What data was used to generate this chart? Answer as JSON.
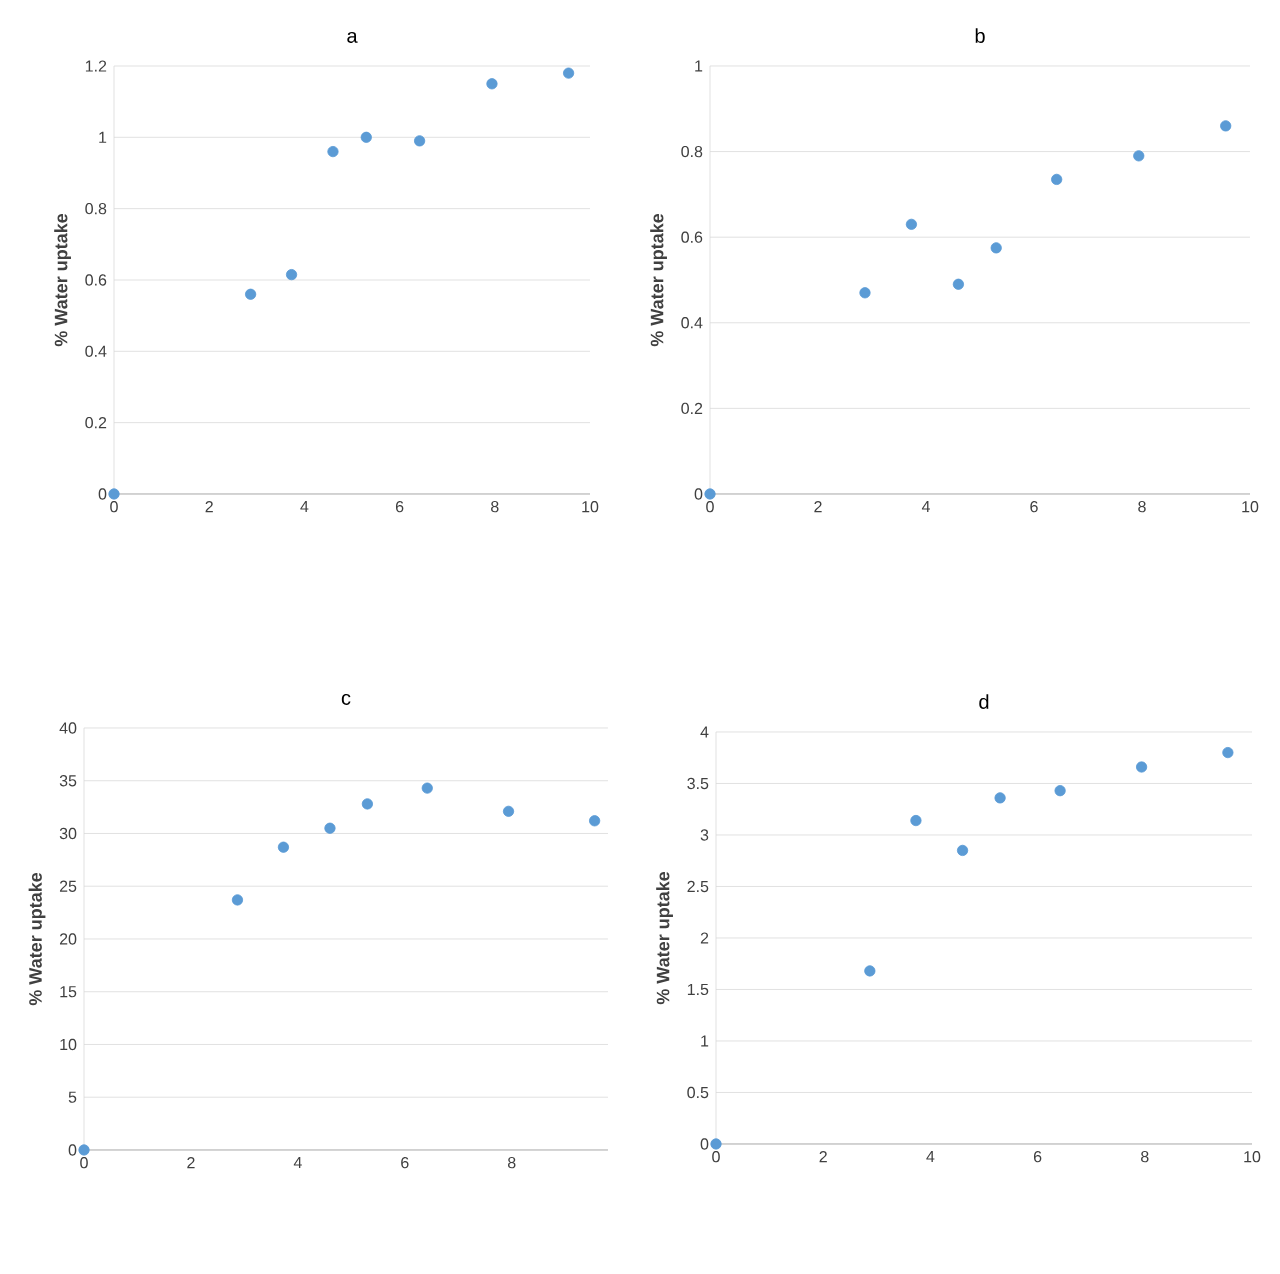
{
  "chart_data": [
    {
      "type": "scatter",
      "title": "a",
      "ylabel": "% Water uptake",
      "x": [
        0,
        2.87,
        3.73,
        4.6,
        5.3,
        6.42,
        7.94,
        9.55
      ],
      "values": [
        0,
        0.56,
        0.615,
        0.96,
        1.0,
        0.99,
        1.15,
        1.18
      ],
      "color": "#5b9bd5",
      "marker": "circle",
      "xlim": [
        0,
        10
      ],
      "ylim": [
        0,
        1.2
      ],
      "xticks": [
        0,
        2,
        4,
        6,
        8,
        10
      ],
      "yticks": [
        0,
        0.2,
        0.4,
        0.6,
        0.8,
        1,
        1.2
      ],
      "grid": "y"
    },
    {
      "type": "scatter",
      "title": "b",
      "ylabel": "% Water uptake",
      "x": [
        0,
        2.87,
        3.73,
        4.6,
        5.3,
        6.42,
        7.94,
        9.55
      ],
      "values": [
        0,
        0.47,
        0.63,
        0.49,
        0.575,
        0.735,
        0.79,
        0.86
      ],
      "color": "#5b9bd5",
      "marker": "circle",
      "xlim": [
        0,
        10
      ],
      "ylim": [
        0,
        1
      ],
      "xticks": [
        0,
        2,
        4,
        6,
        8,
        10
      ],
      "yticks": [
        0,
        0.2,
        0.4,
        0.6,
        0.8,
        1
      ],
      "grid": "y"
    },
    {
      "type": "scatter",
      "title": "c",
      "ylabel": "% Water uptake",
      "x": [
        0,
        2.87,
        3.73,
        4.6,
        5.3,
        6.42,
        7.94,
        9.55
      ],
      "values": [
        0,
        23.7,
        28.7,
        30.5,
        32.8,
        34.3,
        32.1,
        31.2
      ],
      "color": "#5b9bd5",
      "marker": "circle",
      "xlim": [
        0,
        9.8
      ],
      "ylim": [
        0,
        40
      ],
      "xticks": [
        0,
        2,
        4,
        6,
        8
      ],
      "yticks": [
        0,
        5,
        10,
        15,
        20,
        25,
        30,
        35,
        40
      ],
      "grid": "y"
    },
    {
      "type": "scatter",
      "title": "d",
      "ylabel": "% Water uptake",
      "x": [
        0,
        2.87,
        3.73,
        4.6,
        5.3,
        6.42,
        7.94,
        9.55
      ],
      "values": [
        0,
        1.68,
        3.14,
        2.85,
        3.36,
        3.43,
        3.66,
        3.8
      ],
      "color": "#5b9bd5",
      "marker": "circle",
      "xlim": [
        0,
        10
      ],
      "ylim": [
        0,
        4
      ],
      "xticks": [
        0,
        2,
        4,
        6,
        8,
        10
      ],
      "yticks": [
        0,
        0.5,
        1,
        1.5,
        2,
        2.5,
        3,
        3.5,
        4
      ],
      "grid": "y"
    }
  ]
}
